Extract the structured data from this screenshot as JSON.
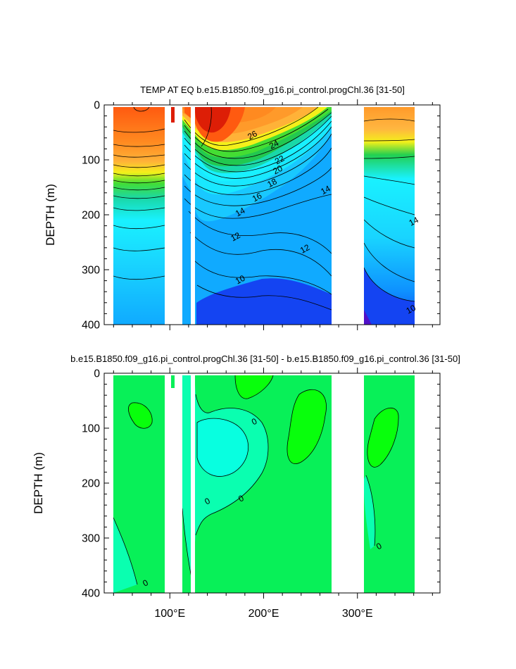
{
  "chart_data": [
    {
      "type": "heatmap",
      "title": "TEMP AT EQ b.e15.B1850.f09_g16.pi_control.progChl.36 [31-50]",
      "ylabel": "DEPTH (m)",
      "xlabel": "",
      "ylim": [
        400,
        0
      ],
      "xlim": [
        30,
        388
      ],
      "yticks": [
        "0",
        "100",
        "200",
        "300",
        "400"
      ],
      "ytick_values": [
        0,
        100,
        200,
        300,
        400
      ],
      "land_gaps_lon": [
        [
          98,
          117
        ],
        [
          130,
          133
        ],
        [
          278,
          313
        ],
        [
          367,
          388
        ]
      ],
      "contour_labels": [
        "26",
        "24",
        "22",
        "20",
        "18",
        "16",
        "14",
        "12",
        "12",
        "10",
        "14",
        "14",
        "10"
      ],
      "contour_label_positions": [
        {
          "label": "26",
          "lon": 188,
          "depth": 55
        },
        {
          "label": "24",
          "lon": 211,
          "depth": 72
        },
        {
          "label": "22",
          "lon": 217,
          "depth": 100
        },
        {
          "label": "20",
          "lon": 215,
          "depth": 118
        },
        {
          "label": "18",
          "lon": 209,
          "depth": 142
        },
        {
          "label": "16",
          "lon": 193,
          "depth": 168
        },
        {
          "label": "14",
          "lon": 175,
          "depth": 195
        },
        {
          "label": "12",
          "lon": 170,
          "depth": 240
        },
        {
          "label": "12",
          "lon": 244,
          "depth": 262
        },
        {
          "label": "10",
          "lon": 175,
          "depth": 318
        },
        {
          "label": "14",
          "lon": 266,
          "depth": 155
        },
        {
          "label": "14",
          "lon": 360,
          "depth": 212
        },
        {
          "label": "10",
          "lon": 357,
          "depth": 372
        }
      ],
      "colors": {
        "warm_max": "#dd1e06",
        "warm": "#ff5a10",
        "orange": "#ff9a2a",
        "yellow": "#f4f01a",
        "green": "#11cc33",
        "cyan": "#19f1ff",
        "mid_blue": "#10aaff",
        "deep_blue": "#1444f2",
        "purple": "#5010c8"
      }
    },
    {
      "type": "heatmap",
      "title": "b.e15.B1850.f09_g16.pi_control.progChl.36 [31-50] - b.e15.B1850.f09_g16.pi_control.36 [31-50]",
      "ylabel": "DEPTH (m)",
      "xlabel": "",
      "ylim": [
        400,
        0
      ],
      "xlim": [
        30,
        388
      ],
      "xticks": [
        "100°E",
        "200°E",
        "300°E"
      ],
      "xtick_values": [
        100,
        200,
        300
      ],
      "yticks": [
        "0",
        "100",
        "200",
        "300",
        "400"
      ],
      "ytick_values": [
        0,
        100,
        200,
        300,
        400
      ],
      "land_gaps_lon": [
        [
          98,
          117
        ],
        [
          130,
          133
        ],
        [
          278,
          313
        ],
        [
          367,
          388
        ]
      ],
      "contour_labels": [
        "0",
        "0",
        "0",
        "0",
        "0"
      ],
      "contour_label_positions": [
        {
          "label": "0",
          "lon": 190,
          "depth": 88
        },
        {
          "label": "0",
          "lon": 176,
          "depth": 228
        },
        {
          "label": "0",
          "lon": 140,
          "depth": 233
        },
        {
          "label": "0",
          "lon": 323,
          "depth": 315
        },
        {
          "label": "0",
          "lon": 74,
          "depth": 382
        }
      ],
      "colors": {
        "background": "#08f058",
        "positive": "#08ff0c",
        "negative_light": "#0affb0",
        "negative": "#08ffe0"
      }
    }
  ]
}
